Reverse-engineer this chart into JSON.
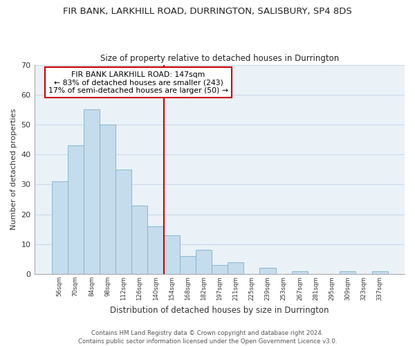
{
  "title": "FIR BANK, LARKHILL ROAD, DURRINGTON, SALISBURY, SP4 8DS",
  "subtitle": "Size of property relative to detached houses in Durrington",
  "xlabel": "Distribution of detached houses by size in Durrington",
  "ylabel": "Number of detached properties",
  "bar_values": [
    31,
    43,
    55,
    50,
    35,
    23,
    16,
    13,
    6,
    8,
    3,
    4,
    0,
    2,
    0,
    1,
    0,
    0,
    1,
    0,
    1
  ],
  "bin_labels": [
    "56sqm",
    "70sqm",
    "84sqm",
    "98sqm",
    "112sqm",
    "126sqm",
    "140sqm",
    "154sqm",
    "168sqm",
    "182sqm",
    "197sqm",
    "211sqm",
    "225sqm",
    "239sqm",
    "253sqm",
    "267sqm",
    "281sqm",
    "295sqm",
    "309sqm",
    "323sqm",
    "337sqm"
  ],
  "bar_color": "#c5dced",
  "bar_edge_color": "#7aafc8",
  "vline_color": "#cc0000",
  "vline_x_index": 7,
  "annotation_title": "FIR BANK LARKHILL ROAD: 147sqm",
  "annotation_line1": "← 83% of detached houses are smaller (243)",
  "annotation_line2": "17% of semi-detached houses are larger (50) →",
  "annotation_box_edge": "#cc0000",
  "ylim": [
    0,
    70
  ],
  "yticks": [
    0,
    10,
    20,
    30,
    40,
    50,
    60,
    70
  ],
  "bg_color": "#eaf2f8",
  "grid_color": "#c8d8e8",
  "footer1": "Contains HM Land Registry data © Crown copyright and database right 2024.",
  "footer2": "Contains public sector information licensed under the Open Government Licence v3.0."
}
